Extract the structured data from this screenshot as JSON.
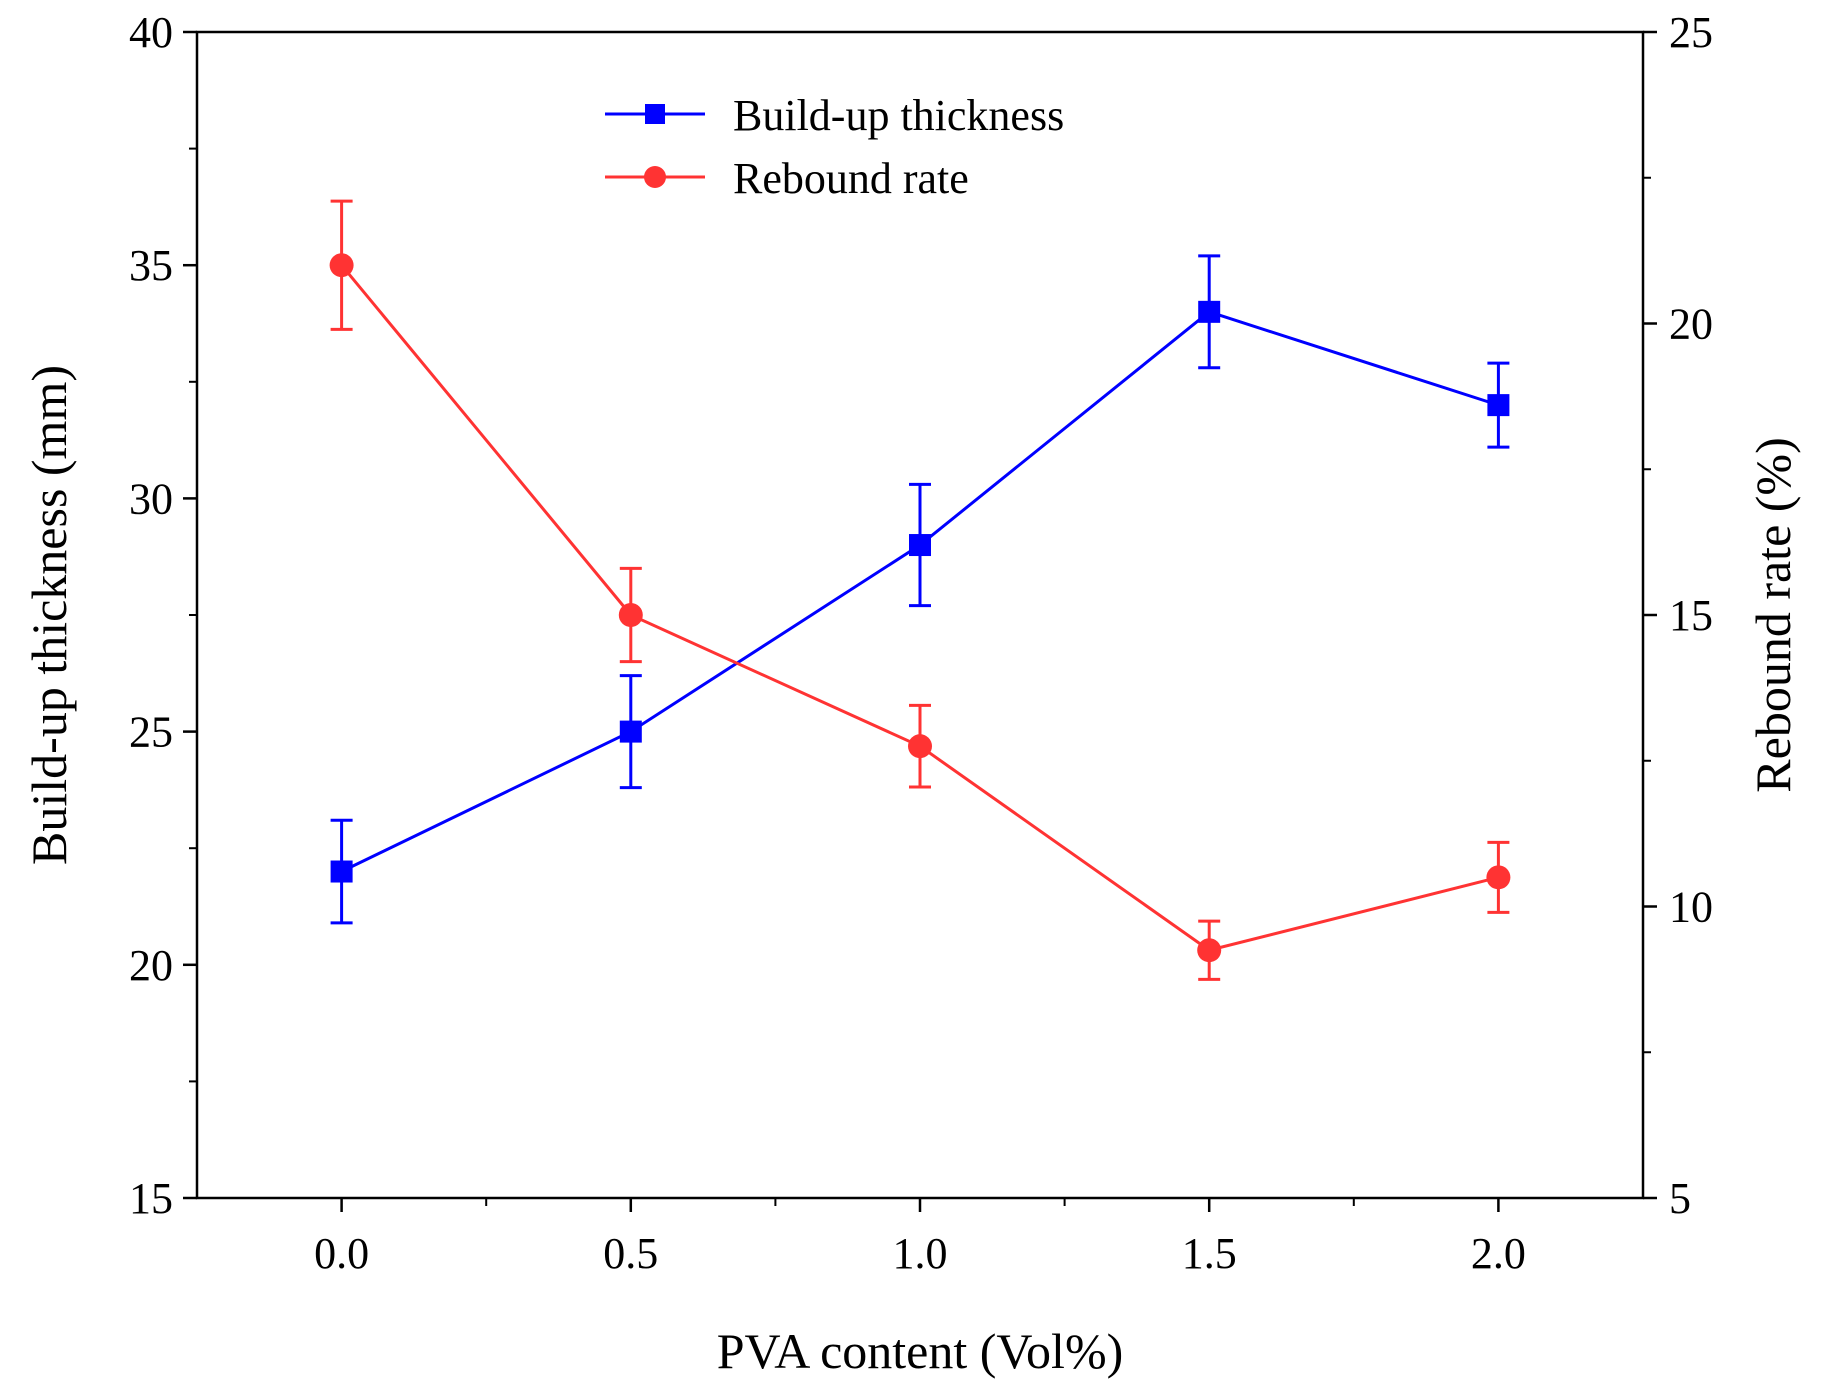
{
  "chart_data": {
    "type": "line",
    "title": "",
    "xlabel": "PVA content (Vol%)",
    "ylabel_left": "Build-up thickness (mm)",
    "ylabel_right": "Rebound rate (%)",
    "xlim": [
      -0.25,
      2.25
    ],
    "ylim_left": [
      15,
      40
    ],
    "ylim_right": [
      5,
      25
    ],
    "x_ticks": [
      0.0,
      0.5,
      1.0,
      1.5,
      2.0
    ],
    "x_tick_labels": [
      "0.0",
      "0.5",
      "1.0",
      "1.5",
      "2.0"
    ],
    "y_left_ticks": [
      15,
      20,
      25,
      30,
      35,
      40
    ],
    "y_left_tick_labels": [
      "15",
      "20",
      "25",
      "30",
      "35",
      "40"
    ],
    "y_right_ticks": [
      5,
      10,
      15,
      20,
      25
    ],
    "y_right_tick_labels": [
      "5",
      "10",
      "15",
      "20",
      "25"
    ],
    "grid": false,
    "legend_position": "top-center",
    "series": [
      {
        "name": "Build-up thickness",
        "axis": "left",
        "marker": "square",
        "color": "#0000ff",
        "x": [
          0.0,
          0.5,
          1.0,
          1.5,
          2.0
        ],
        "values": [
          22.0,
          25.0,
          29.0,
          34.0,
          32.0
        ],
        "errors": [
          1.1,
          1.2,
          1.3,
          1.2,
          0.9
        ]
      },
      {
        "name": "Rebound rate",
        "axis": "right",
        "marker": "circle",
        "color": "#ff3333",
        "x": [
          0.0,
          0.5,
          1.0,
          1.5,
          2.0
        ],
        "values": [
          21.0,
          15.0,
          12.75,
          9.25,
          10.5
        ],
        "errors": [
          1.1,
          0.8,
          0.7,
          0.5,
          0.6
        ]
      }
    ]
  }
}
